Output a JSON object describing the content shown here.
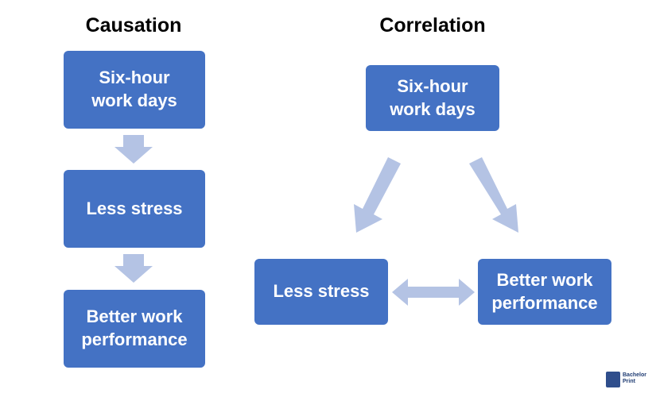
{
  "causation": {
    "title": "Causation",
    "nodes": [
      {
        "label": "Six-hour work days"
      },
      {
        "label": "Less stress"
      },
      {
        "label": "Better work performance"
      }
    ]
  },
  "correlation": {
    "title": "Correlation",
    "nodes": [
      {
        "label": "Six-hour work days"
      },
      {
        "label": "Less stress"
      },
      {
        "label": "Better work performance"
      }
    ]
  },
  "logo": {
    "text": "Bachelor Print"
  }
}
